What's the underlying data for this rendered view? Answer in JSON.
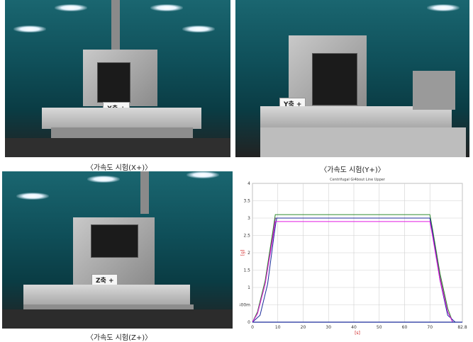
{
  "photos": {
    "x": {
      "caption": "〈가속도 시험(X+)〉",
      "plate": "X축 +"
    },
    "y": {
      "caption": "〈가속도 시험(Y+)〉",
      "plate": "Y축 +"
    },
    "z": {
      "caption": "〈가속도 시험(Z+)〉",
      "plate": "Z축 +"
    }
  },
  "chart_data": {
    "type": "line",
    "title": "Centrifugal Gi4bout Line Upper",
    "xlabel": "[s]",
    "ylabel": "[g]",
    "xlim": [
      0,
      82.8
    ],
    "ylim": [
      0,
      4
    ],
    "x_ticks": [
      "0",
      "10",
      "20",
      "30",
      "40",
      "50",
      "60",
      "70",
      "82.8"
    ],
    "y_ticks": [
      "0",
      "500m",
      "1",
      "1.5",
      "2",
      "2.5",
      "3",
      "3.5",
      "4"
    ],
    "series": [
      {
        "color": "#2e8b2e",
        "x": [
          0,
          2,
          5,
          8,
          9,
          70,
          71,
          74,
          77,
          79
        ],
        "y": [
          0,
          0.3,
          1.2,
          2.6,
          3.1,
          3.1,
          2.7,
          1.4,
          0.4,
          0
        ]
      },
      {
        "color": "#7a3e7a",
        "x": [
          0,
          2,
          5,
          8,
          9,
          70,
          71,
          74,
          77,
          79
        ],
        "y": [
          0,
          0.25,
          1.1,
          2.5,
          3.0,
          3.0,
          2.6,
          1.3,
          0.3,
          0
        ]
      },
      {
        "color": "#1a2a9a",
        "x": [
          0,
          3,
          6,
          8.5,
          9.5,
          70,
          71,
          74,
          77,
          80
        ],
        "y": [
          0,
          0.2,
          1.1,
          2.5,
          3.0,
          3.0,
          2.6,
          1.2,
          0.2,
          0
        ]
      },
      {
        "color": "#e21be2",
        "x": [
          0,
          2,
          5,
          8,
          9,
          70,
          71,
          74,
          77,
          79
        ],
        "y": [
          0,
          0.25,
          1.1,
          2.4,
          2.9,
          2.9,
          2.5,
          1.2,
          0.3,
          0
        ]
      }
    ]
  }
}
